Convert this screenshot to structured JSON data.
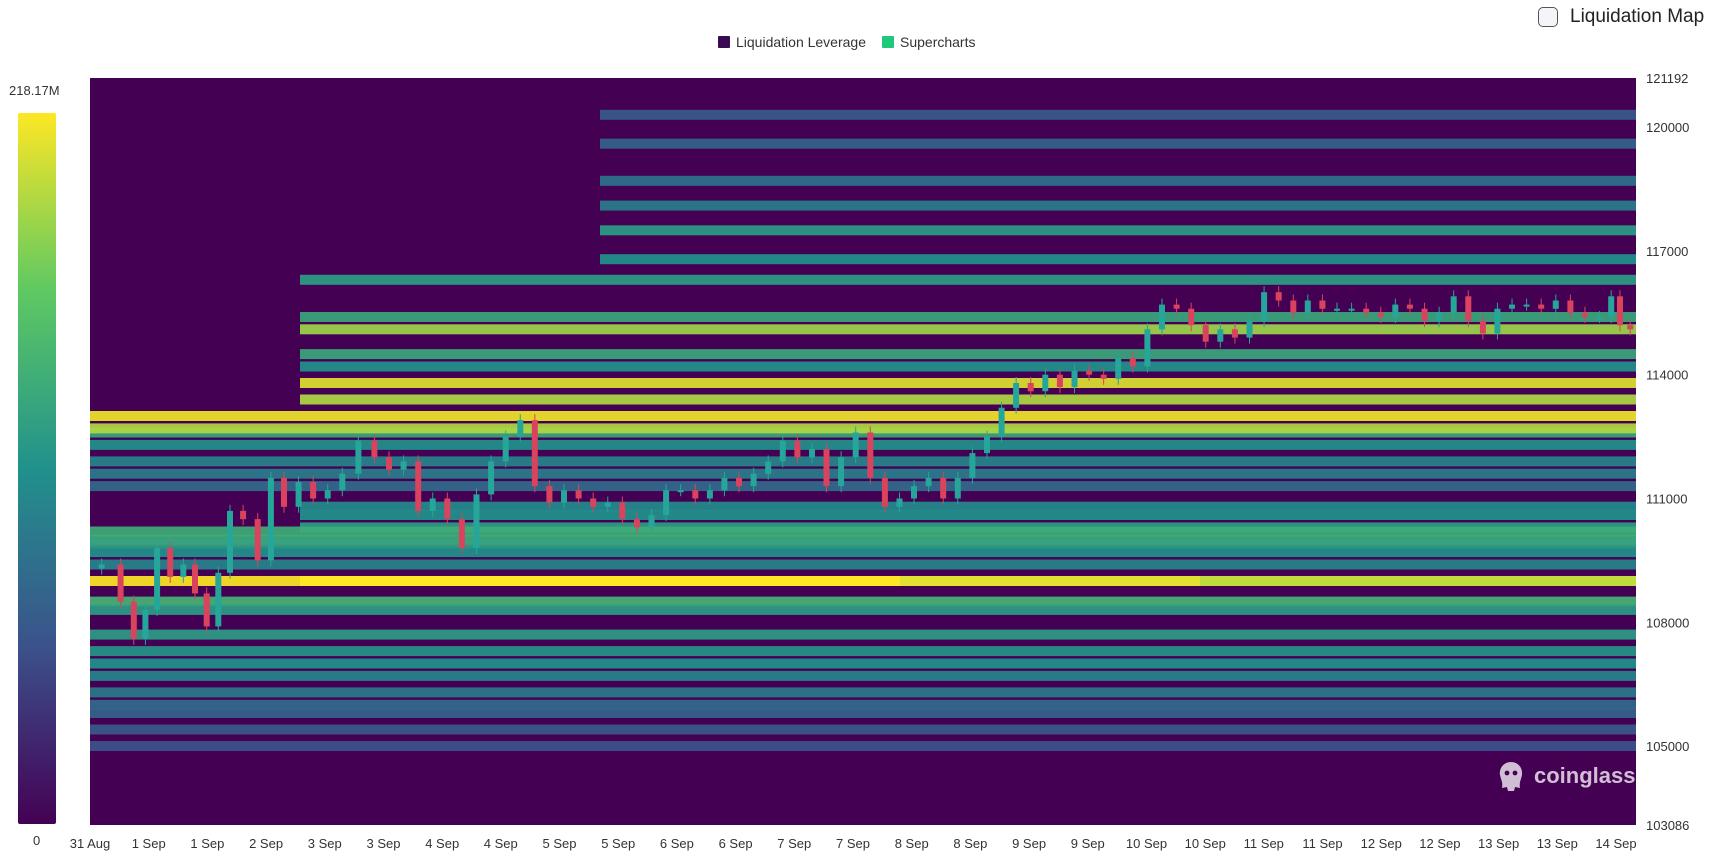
{
  "toggle": {
    "label": "Liquidation Map",
    "checked": false
  },
  "legend": [
    {
      "name": "Liquidation Leverage",
      "color": "#3b0a55"
    },
    {
      "name": "Supercharts",
      "color": "#1fc87a"
    }
  ],
  "colorbar": {
    "max_label": "218.17M",
    "min_label": "0"
  },
  "watermark": "coinglass",
  "chart_data": {
    "type": "heatmap",
    "title": "",
    "xlabel": "",
    "ylabel": "",
    "x_tick_labels": [
      "31 Aug",
      "1 Sep",
      "1 Sep",
      "2 Sep",
      "3 Sep",
      "3 Sep",
      "4 Sep",
      "4 Sep",
      "5 Sep",
      "5 Sep",
      "6 Sep",
      "6 Sep",
      "7 Sep",
      "7 Sep",
      "8 Sep",
      "8 Sep",
      "9 Sep",
      "9 Sep",
      "10 Sep",
      "10 Sep",
      "11 Sep",
      "11 Sep",
      "12 Sep",
      "12 Sep",
      "13 Sep",
      "13 Sep",
      "14 Sep"
    ],
    "y_tick_labels": [
      "121192",
      "120000",
      "117000",
      "114000",
      "111000",
      "108000",
      "105000",
      "103086"
    ],
    "y_ticks": [
      121192,
      120000,
      117000,
      114000,
      111000,
      108000,
      105000,
      103086
    ],
    "ylim": [
      103086,
      121192
    ],
    "colorscale": [
      "#440154",
      "#3b528b",
      "#21918c",
      "#5ec962",
      "#fde725"
    ],
    "value_range": [
      0,
      218.17
    ],
    "value_unit": "M",
    "price_path": [
      [
        0,
        109300
      ],
      [
        0.8,
        109400
      ],
      [
        1.3,
        108500
      ],
      [
        1.7,
        107600
      ],
      [
        2.1,
        108300
      ],
      [
        2.5,
        109800
      ],
      [
        3.0,
        109100
      ],
      [
        3.4,
        109400
      ],
      [
        3.8,
        108700
      ],
      [
        4.2,
        107900
      ],
      [
        4.6,
        109200
      ],
      [
        5.0,
        110700
      ],
      [
        5.5,
        110500
      ],
      [
        6.0,
        109500
      ],
      [
        6.4,
        111500
      ],
      [
        6.9,
        110800
      ],
      [
        7.4,
        111400
      ],
      [
        7.9,
        111000
      ],
      [
        8.4,
        111200
      ],
      [
        8.9,
        111600
      ],
      [
        9.5,
        112400
      ],
      [
        10.0,
        112000
      ],
      [
        10.5,
        111700
      ],
      [
        11.0,
        111900
      ],
      [
        11.5,
        110700
      ],
      [
        12.0,
        111000
      ],
      [
        12.5,
        110500
      ],
      [
        13.0,
        109800
      ],
      [
        13.5,
        111100
      ],
      [
        14.0,
        111900
      ],
      [
        14.5,
        112500
      ],
      [
        15.0,
        112900
      ],
      [
        15.5,
        111300
      ],
      [
        16.0,
        110900
      ],
      [
        16.5,
        111200
      ],
      [
        17.0,
        111000
      ],
      [
        17.5,
        110800
      ],
      [
        18.0,
        110900
      ],
      [
        18.5,
        110500
      ],
      [
        19.0,
        110300
      ],
      [
        19.5,
        110600
      ],
      [
        20.0,
        111200
      ],
      [
        20.5,
        111200
      ],
      [
        21.0,
        111000
      ],
      [
        21.5,
        111200
      ],
      [
        22.0,
        111500
      ],
      [
        22.5,
        111300
      ],
      [
        23.0,
        111600
      ],
      [
        23.5,
        111900
      ],
      [
        24.0,
        112400
      ],
      [
        24.5,
        112000
      ],
      [
        25.0,
        112200
      ],
      [
        25.5,
        111300
      ],
      [
        26.0,
        112000
      ],
      [
        26.5,
        112600
      ],
      [
        27.0,
        111500
      ],
      [
        27.5,
        110800
      ],
      [
        28.0,
        111000
      ],
      [
        28.5,
        111300
      ],
      [
        29.0,
        111500
      ],
      [
        29.5,
        111000
      ],
      [
        30.0,
        111500
      ],
      [
        30.5,
        112100
      ],
      [
        31.0,
        112500
      ],
      [
        31.5,
        113200
      ],
      [
        32.0,
        113800
      ],
      [
        32.5,
        113600
      ],
      [
        33.0,
        114000
      ],
      [
        33.5,
        113700
      ],
      [
        34.0,
        114100
      ],
      [
        34.5,
        114000
      ],
      [
        35.0,
        113900
      ],
      [
        35.5,
        114400
      ],
      [
        36.0,
        114200
      ],
      [
        36.5,
        115100
      ],
      [
        37.0,
        115700
      ],
      [
        37.5,
        115600
      ],
      [
        38.0,
        115200
      ],
      [
        38.5,
        114800
      ],
      [
        39.0,
        115100
      ],
      [
        39.5,
        114900
      ],
      [
        40.0,
        115300
      ],
      [
        40.5,
        116000
      ],
      [
        41.0,
        115800
      ],
      [
        41.5,
        115500
      ],
      [
        42.0,
        115800
      ],
      [
        42.5,
        115600
      ],
      [
        43.0,
        115600
      ],
      [
        43.5,
        115600
      ],
      [
        44.0,
        115500
      ],
      [
        44.5,
        115400
      ],
      [
        45.0,
        115700
      ],
      [
        45.5,
        115600
      ],
      [
        46.0,
        115300
      ],
      [
        46.5,
        115500
      ],
      [
        47.0,
        115900
      ],
      [
        47.5,
        115300
      ],
      [
        48.0,
        115000
      ],
      [
        48.5,
        115600
      ],
      [
        49.0,
        115700
      ],
      [
        49.5,
        115700
      ],
      [
        50.0,
        115600
      ],
      [
        50.5,
        115800
      ],
      [
        51.0,
        115500
      ],
      [
        51.5,
        115400
      ],
      [
        52.0,
        115400
      ],
      [
        52.3,
        115900
      ],
      [
        52.6,
        115200
      ],
      [
        53.0,
        115100
      ]
    ],
    "liquidation_bands": [
      [
        109000,
        0,
        1.0
      ],
      [
        109000,
        1,
        1.0
      ],
      [
        109000,
        2,
        1.0
      ],
      [
        109000,
        3,
        0.95
      ],
      [
        109000,
        4,
        0.9
      ],
      [
        108500,
        0,
        0.65
      ],
      [
        108300,
        0,
        0.55
      ],
      [
        109400,
        0,
        0.45
      ],
      [
        110000,
        0,
        0.62
      ],
      [
        110300,
        1,
        0.55
      ],
      [
        110600,
        1,
        0.5
      ],
      [
        110800,
        1,
        0.48
      ],
      [
        107700,
        0,
        0.55
      ],
      [
        107300,
        0,
        0.52
      ],
      [
        107000,
        0,
        0.5
      ],
      [
        106700,
        0,
        0.45
      ],
      [
        106300,
        0,
        0.4
      ],
      [
        106000,
        0,
        0.35
      ],
      [
        105800,
        0,
        0.32
      ],
      [
        105400,
        0,
        0.28
      ],
      [
        105000,
        0,
        0.25
      ],
      [
        113000,
        0,
        0.98
      ],
      [
        112600,
        0,
        0.6
      ],
      [
        112300,
        0,
        0.5
      ],
      [
        111900,
        0,
        0.45
      ],
      [
        111600,
        0,
        0.42
      ],
      [
        111300,
        0,
        0.35
      ],
      [
        113800,
        1,
        0.95
      ],
      [
        113400,
        1,
        0.88
      ],
      [
        114500,
        1,
        0.6
      ],
      [
        114200,
        1,
        0.5
      ],
      [
        115100,
        1,
        0.85
      ],
      [
        115400,
        1,
        0.6
      ],
      [
        116300,
        1,
        0.55
      ],
      [
        116800,
        2,
        0.5
      ],
      [
        117500,
        2,
        0.55
      ],
      [
        118100,
        2,
        0.42
      ],
      [
        118700,
        2,
        0.38
      ],
      [
        119600,
        2,
        0.32
      ],
      [
        120300,
        2,
        0.28
      ],
      [
        112700,
        0,
        0.88
      ],
      [
        110200,
        0,
        0.62
      ],
      [
        109900,
        0,
        0.58
      ],
      [
        109700,
        0,
        0.5
      ]
    ]
  }
}
